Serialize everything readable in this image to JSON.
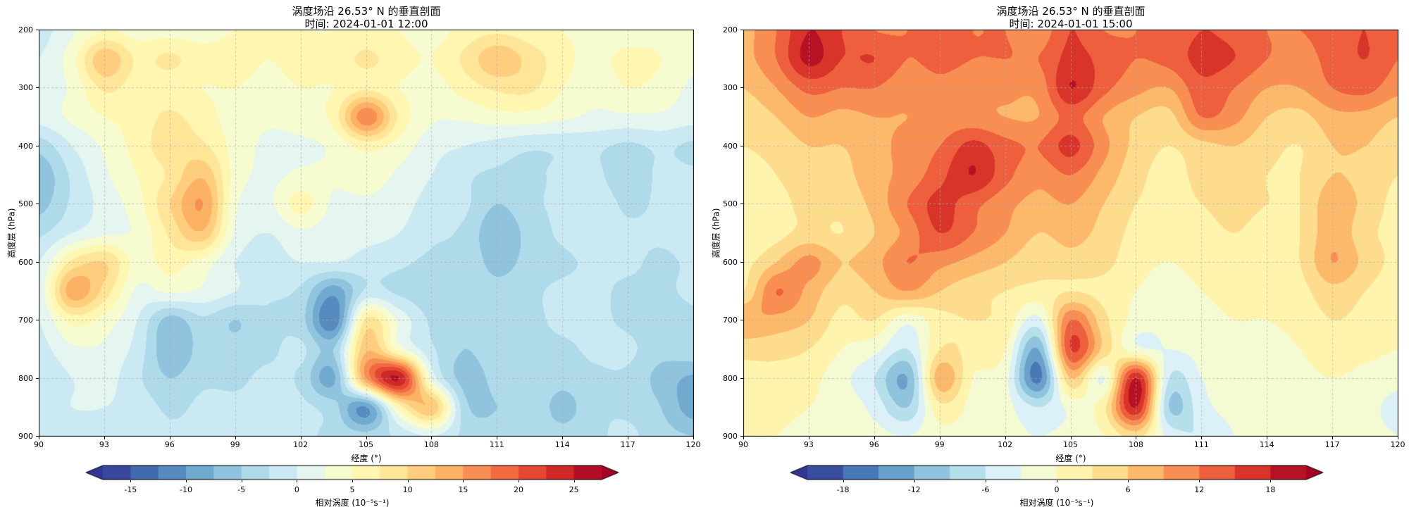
{
  "page": {
    "background": "#ffffff"
  },
  "colormap": {
    "name": "RdYlBu_r",
    "anchors": [
      [
        0.0,
        "#313695"
      ],
      [
        0.1,
        "#4575b4"
      ],
      [
        0.2,
        "#74add1"
      ],
      [
        0.3,
        "#abd9e9"
      ],
      [
        0.4,
        "#e0f3f8"
      ],
      [
        0.5,
        "#ffffbf"
      ],
      [
        0.6,
        "#fee090"
      ],
      [
        0.7,
        "#fdae61"
      ],
      [
        0.8,
        "#f46d43"
      ],
      [
        0.9,
        "#d73027"
      ],
      [
        1.0,
        "#a50026"
      ]
    ]
  },
  "chart_data": [
    {
      "type": "heatmap",
      "title": "涡度场沿 26.53° N 的垂直剖面",
      "subtitle": "时间: 2024-01-01 12:00",
      "xlabel": "经度 (°)",
      "ylabel": "高度层 (hPa)",
      "colorbar_label": "相对涡度 (10⁻⁵s⁻¹)",
      "xlim": [
        90,
        120
      ],
      "ylim": [
        900,
        200
      ],
      "grid": true,
      "colorbar_position": "bottom",
      "x_ticks": [
        90,
        93,
        96,
        99,
        102,
        105,
        108,
        111,
        114,
        117,
        120
      ],
      "y_ticks": [
        200,
        300,
        400,
        500,
        600,
        700,
        800,
        900
      ],
      "vmin": -17.5,
      "vmax": 27.5,
      "level_step": 2.5,
      "colorbar_ticks": [
        -15,
        -10,
        -5,
        0,
        5,
        10,
        15,
        20,
        25
      ],
      "x": [
        90,
        91.5,
        93,
        94.5,
        96,
        97.5,
        99,
        100.5,
        102,
        103.5,
        105,
        106.5,
        108,
        109.5,
        111,
        112.5,
        114,
        115.5,
        117,
        118.5,
        120
      ],
      "y": [
        200,
        250,
        300,
        350,
        400,
        450,
        500,
        550,
        600,
        650,
        700,
        750,
        800,
        850,
        900
      ],
      "values": [
        [
          -1,
          2,
          5,
          4,
          4,
          4,
          5,
          5,
          5,
          5,
          6,
          5,
          4,
          6,
          7,
          6,
          5,
          4,
          3,
          4,
          3
        ],
        [
          0,
          4,
          12,
          7,
          8,
          6,
          6,
          5,
          6,
          6,
          8,
          6,
          5,
          8,
          12,
          9,
          6,
          4,
          6,
          5,
          3
        ],
        [
          1,
          3,
          8,
          6,
          6,
          5,
          5,
          4,
          5,
          5,
          7,
          5,
          4,
          6,
          8,
          8,
          5,
          3,
          5,
          4,
          2
        ],
        [
          1,
          3,
          5,
          6,
          8,
          6,
          4,
          3,
          4,
          6,
          17,
          7,
          3,
          3,
          4,
          4,
          3,
          2,
          2,
          2,
          1
        ],
        [
          -4,
          0,
          3,
          6,
          9,
          8,
          4,
          2,
          2,
          3,
          6,
          4,
          1,
          0,
          -1,
          -2,
          -2,
          -2,
          -3,
          -2,
          -3
        ],
        [
          -7,
          -2,
          2,
          5,
          8,
          12,
          4,
          2,
          3,
          3,
          4,
          2,
          0,
          -2,
          -3,
          -3,
          -2,
          -2,
          -4,
          -2,
          -2
        ],
        [
          -6,
          -2,
          1,
          4,
          10,
          15,
          3,
          2,
          6,
          2,
          2,
          1,
          -1,
          -2,
          -5,
          -3,
          -2,
          -1,
          -3,
          -2,
          -1
        ],
        [
          -3,
          0,
          2,
          3,
          8,
          12,
          2,
          0,
          2,
          1,
          1,
          0,
          -2,
          -3,
          -7,
          -4,
          -2,
          -1,
          -2,
          -2,
          -1
        ],
        [
          0,
          8,
          10,
          4,
          6,
          4,
          0,
          -1,
          0,
          0,
          -1,
          -2,
          -3,
          -3,
          -6,
          -4,
          -3,
          -2,
          -2,
          -3,
          -2
        ],
        [
          1,
          14,
          9,
          2,
          3,
          2,
          0,
          -2,
          -3,
          -9,
          -2,
          -3,
          -4,
          -3,
          -4,
          -3,
          -2,
          -2,
          -3,
          -3,
          -2
        ],
        [
          0,
          6,
          4,
          0,
          -6,
          -3,
          -5,
          -3,
          -4,
          -12,
          8,
          2,
          -3,
          -4,
          -3,
          -3,
          -2,
          -2,
          -3,
          -4,
          -3
        ],
        [
          -1,
          2,
          2,
          -1,
          -7,
          -4,
          -4,
          -3,
          -2,
          -5,
          12,
          4,
          -2,
          -5,
          -3,
          -3,
          -3,
          -2,
          -2,
          -4,
          -3
        ],
        [
          -2,
          0,
          1,
          -2,
          -5,
          -3,
          -3,
          -2,
          -3,
          -8,
          15,
          25,
          2,
          -6,
          -4,
          -3,
          -4,
          -3,
          -3,
          -6,
          -8
        ],
        [
          -1,
          0,
          0,
          -1,
          -3,
          -2,
          -2,
          -2,
          -2,
          -4,
          -10,
          6,
          12,
          -4,
          -5,
          -3,
          -6,
          -3,
          -3,
          -5,
          -9
        ],
        [
          0,
          -1,
          -1,
          -1,
          -2,
          -2,
          -2,
          -1,
          -2,
          -3,
          -4,
          -2,
          0,
          -3,
          -4,
          -3,
          -4,
          -3,
          -2,
          -4,
          -5
        ]
      ]
    },
    {
      "type": "heatmap",
      "title": "涡度场沿 26.53° N 的垂直剖面",
      "subtitle": "时间: 2024-01-01 15:00",
      "xlabel": "经度 (°)",
      "ylabel": "高度层 (hPa)",
      "colorbar_label": "相对涡度 (10⁻⁵s⁻¹)",
      "xlim": [
        90,
        120
      ],
      "ylim": [
        900,
        200
      ],
      "grid": true,
      "colorbar_position": "bottom",
      "x_ticks": [
        90,
        93,
        96,
        99,
        102,
        105,
        108,
        111,
        114,
        117,
        120
      ],
      "y_ticks": [
        200,
        300,
        400,
        500,
        600,
        700,
        800,
        900
      ],
      "vmin": -21,
      "vmax": 21,
      "level_step": 3,
      "colorbar_ticks": [
        -18,
        -12,
        -6,
        0,
        6,
        12,
        18
      ],
      "x": [
        90,
        91.5,
        93,
        94.5,
        96,
        97.5,
        99,
        100.5,
        102,
        103.5,
        105,
        106.5,
        108,
        109.5,
        111,
        112.5,
        114,
        115.5,
        117,
        118.5,
        120
      ],
      "y": [
        200,
        250,
        300,
        350,
        400,
        450,
        500,
        550,
        600,
        650,
        700,
        750,
        800,
        850,
        900
      ],
      "values": [
        [
          8,
          12,
          18,
          15,
          12,
          12,
          13,
          12,
          12,
          10,
          15,
          12,
          12,
          13,
          15,
          14,
          12,
          12,
          13,
          15,
          12
        ],
        [
          8,
          12,
          19,
          15,
          15,
          12,
          13,
          12,
          12,
          12,
          16,
          14,
          12,
          13,
          16,
          15,
          12,
          11,
          13,
          15,
          12
        ],
        [
          6,
          9,
          13,
          12,
          12,
          10,
          11,
          10,
          10,
          10,
          18,
          13,
          10,
          9,
          14,
          12,
          9,
          9,
          12,
          13,
          10
        ],
        [
          4,
          6,
          9,
          8,
          9,
          9,
          10,
          10,
          9,
          9,
          13,
          9,
          6,
          5,
          12,
          10,
          6,
          5,
          8,
          8,
          6
        ],
        [
          3,
          4,
          6,
          6,
          8,
          10,
          12,
          16,
          13,
          12,
          16,
          10,
          5,
          3,
          5,
          6,
          4,
          3,
          6,
          6,
          4
        ],
        [
          2,
          3,
          5,
          5,
          8,
          10,
          14,
          18,
          13,
          10,
          12,
          8,
          4,
          2,
          4,
          5,
          3,
          3,
          6,
          5,
          3
        ],
        [
          1,
          2,
          4,
          4,
          7,
          12,
          16,
          13,
          10,
          8,
          9,
          6,
          3,
          2,
          3,
          4,
          3,
          3,
          8,
          5,
          2
        ],
        [
          0,
          2,
          4,
          3,
          6,
          10,
          15,
          12,
          9,
          6,
          7,
          5,
          2,
          1,
          2,
          3,
          2,
          3,
          8,
          4,
          2
        ],
        [
          2,
          6,
          10,
          6,
          8,
          12,
          10,
          8,
          6,
          4,
          5,
          4,
          1,
          0,
          1,
          2,
          2,
          3,
          9,
          5,
          2
        ],
        [
          3,
          12,
          8,
          4,
          6,
          9,
          6,
          4,
          3,
          2,
          3,
          2,
          0,
          -1,
          0,
          1,
          1,
          2,
          5,
          3,
          1
        ],
        [
          9,
          8,
          6,
          2,
          3,
          -2,
          2,
          3,
          2,
          -4,
          12,
          4,
          -1,
          -2,
          -1,
          0,
          0,
          1,
          3,
          2,
          1
        ],
        [
          4,
          4,
          3,
          0,
          -2,
          -6,
          3,
          2,
          0,
          -12,
          15,
          5,
          -2,
          -3,
          -2,
          -1,
          -1,
          0,
          2,
          1,
          0
        ],
        [
          2,
          2,
          1,
          -2,
          -6,
          -12,
          8,
          0,
          -2,
          -16,
          6,
          -3,
          18,
          -6,
          -3,
          -2,
          -2,
          -1,
          0,
          -1,
          -2
        ],
        [
          1,
          1,
          0,
          -1,
          -4,
          -9,
          2,
          -1,
          -2,
          -6,
          -2,
          2,
          18,
          -9,
          -4,
          -2,
          -2,
          -1,
          -1,
          -2,
          -4
        ],
        [
          0,
          0,
          -1,
          -1,
          -2,
          -3,
          -1,
          -1,
          -2,
          -3,
          -2,
          0,
          4,
          -4,
          -6,
          -3,
          -2,
          -1,
          -1,
          -2,
          -3
        ]
      ]
    }
  ]
}
